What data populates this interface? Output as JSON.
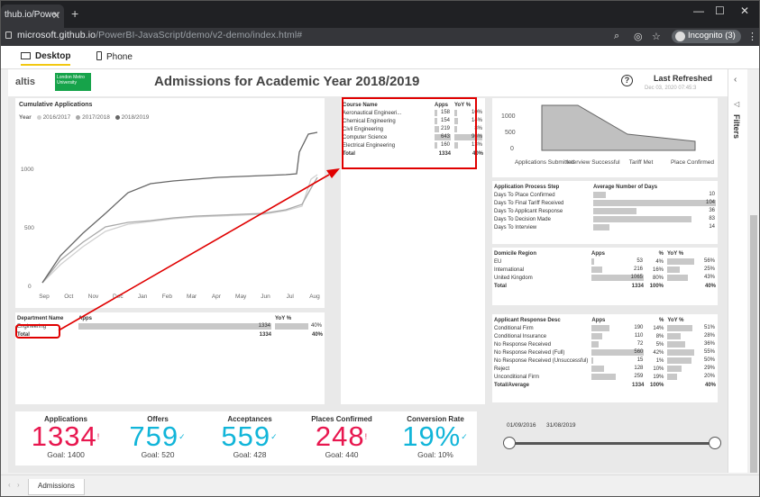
{
  "browser": {
    "tab_title": "thub.io/Power",
    "url_host": "microsoft.github.io",
    "url_path": "/PowerBI-JavaScript/demo/v2-demo/index.html#",
    "incognito_label": "Incognito (3)"
  },
  "layout_modes": {
    "desktop": "Desktop",
    "phone": "Phone"
  },
  "report": {
    "title": "Admissions for Academic Year 2018/2019",
    "logo_text": "altis",
    "logo2_text": "London Metro University",
    "last_refreshed_label": "Last Refreshed",
    "last_refreshed_value": "Dec 03, 2020 07:45:3",
    "cumulative": {
      "title": "Cumulative Applications",
      "legend_label": "Year",
      "legend": [
        {
          "name": "2016/2017",
          "color": "#d0d0d0"
        },
        {
          "name": "2017/2018",
          "color": "#a8a8a8"
        },
        {
          "name": "2018/2019",
          "color": "#666666"
        }
      ],
      "yticks": [
        "1000",
        "500",
        "0"
      ],
      "xticks": [
        "Sep",
        "Oct",
        "Nov",
        "Dec",
        "Jan",
        "Feb",
        "Mar",
        "Apr",
        "May",
        "Jun",
        "Jul",
        "Aug"
      ]
    },
    "department": {
      "headers": [
        "Department Name",
        "Apps",
        "YoY %"
      ],
      "rows": [
        {
          "name": "Engineering",
          "apps": "1334",
          "apps_pct": 100,
          "yoy": "40%",
          "yoy_pct": 70
        }
      ],
      "total": {
        "label": "Total",
        "apps": "1334",
        "yoy": "40%"
      }
    },
    "course": {
      "headers": [
        "Course Name",
        "Apps",
        "YoY %"
      ],
      "rows": [
        {
          "name": "Aeronautical Engineeri...",
          "apps": "158",
          "apps_pct": 18,
          "yoy": "10%",
          "yoy_pct": 10
        },
        {
          "name": "Chemical Engineering",
          "apps": "154",
          "apps_pct": 17,
          "yoy": "14%",
          "yoy_pct": 14
        },
        {
          "name": "Civil Engineering",
          "apps": "219",
          "apps_pct": 25,
          "yoy": "8%",
          "yoy_pct": 8
        },
        {
          "name": "Computer Science",
          "apps": "643",
          "apps_pct": 100,
          "yoy": "96%",
          "yoy_pct": 96
        },
        {
          "name": "Electrical Engineering",
          "apps": "160",
          "apps_pct": 19,
          "yoy": "13%",
          "yoy_pct": 13
        }
      ],
      "total": {
        "label": "Total",
        "apps": "1334",
        "yoy": "40%"
      }
    },
    "funnel": {
      "yticks": [
        "1000",
        "500",
        "0"
      ],
      "labels": [
        "Applications Submitted",
        "Interview Successful",
        "Tariff Met",
        "Place Confirmed"
      ]
    },
    "process": {
      "headers": [
        "Application Process Step",
        "Average Number of Days"
      ],
      "rows": [
        {
          "name": "Days To Place Confirmed",
          "val": "10",
          "pct": 10
        },
        {
          "name": "Days To Final Tariff Received",
          "val": "104",
          "pct": 100
        },
        {
          "name": "Days To Applicant Response",
          "val": "36",
          "pct": 35
        },
        {
          "name": "Days To Decision Made",
          "val": "83",
          "pct": 80
        },
        {
          "name": "Days To Interview",
          "val": "14",
          "pct": 13
        }
      ]
    },
    "domicile": {
      "headers": [
        "Domicile Region",
        "Apps",
        "%",
        "YoY %"
      ],
      "rows": [
        {
          "name": "EU",
          "apps": "53",
          "apps_pct": 5,
          "pct": "4%",
          "yoy": "56%",
          "yoy_pct": 56
        },
        {
          "name": "International",
          "apps": "216",
          "apps_pct": 20,
          "pct": "16%",
          "yoy": "25%",
          "yoy_pct": 25
        },
        {
          "name": "United Kingdom",
          "apps": "1065",
          "apps_pct": 100,
          "pct": "80%",
          "yoy": "43%",
          "yoy_pct": 43
        }
      ],
      "total": {
        "label": "Total",
        "apps": "1334",
        "pct": "100%",
        "yoy": "40%"
      }
    },
    "response": {
      "headers": [
        "Applicant Response Desc",
        "Apps",
        "%",
        "YoY %"
      ],
      "rows": [
        {
          "name": "Conditional Firm",
          "apps": "190",
          "apps_pct": 34,
          "pct": "14%",
          "yoy": "51%",
          "yoy_pct": 51
        },
        {
          "name": "Conditional Insurance",
          "apps": "110",
          "apps_pct": 20,
          "pct": "8%",
          "yoy": "28%",
          "yoy_pct": 28
        },
        {
          "name": "No Response Received",
          "apps": "72",
          "apps_pct": 13,
          "pct": "5%",
          "yoy": "36%",
          "yoy_pct": 36
        },
        {
          "name": "No Response Received (Full)",
          "apps": "560",
          "apps_pct": 100,
          "pct": "42%",
          "yoy": "55%",
          "yoy_pct": 55
        },
        {
          "name": "No Response Received (Unsuccessful)",
          "apps": "15",
          "apps_pct": 3,
          "pct": "1%",
          "yoy": "50%",
          "yoy_pct": 50
        },
        {
          "name": "Reject",
          "apps": "128",
          "apps_pct": 23,
          "pct": "10%",
          "yoy": "29%",
          "yoy_pct": 29
        },
        {
          "name": "Unconditional Firm",
          "apps": "259",
          "apps_pct": 46,
          "pct": "19%",
          "yoy": "20%",
          "yoy_pct": 20
        }
      ],
      "total": {
        "label": "Total/Average",
        "apps": "1334",
        "pct": "100%",
        "yoy": "40%"
      }
    },
    "kpis": [
      {
        "label": "Applications",
        "value": "1334",
        "goal": "Goal: 1400",
        "color": "#e8174f",
        "mark": "!"
      },
      {
        "label": "Offers",
        "value": "759",
        "goal": "Goal: 520",
        "color": "#11b5d9",
        "mark": "✓"
      },
      {
        "label": "Acceptances",
        "value": "559",
        "goal": "Goal: 428",
        "color": "#11b5d9",
        "mark": "✓"
      },
      {
        "label": "Places Confirmed",
        "value": "248",
        "goal": "Goal: 440",
        "color": "#e8174f",
        "mark": "!"
      },
      {
        "label": "Conversion Rate",
        "value": "19%",
        "goal": "Goal: 10%",
        "color": "#11b5d9",
        "mark": "✓"
      }
    ],
    "slider": {
      "start": "01/09/2016",
      "end": "31/08/2019"
    }
  },
  "filters_label": "Filters",
  "sheet_tab": "Admissions"
}
